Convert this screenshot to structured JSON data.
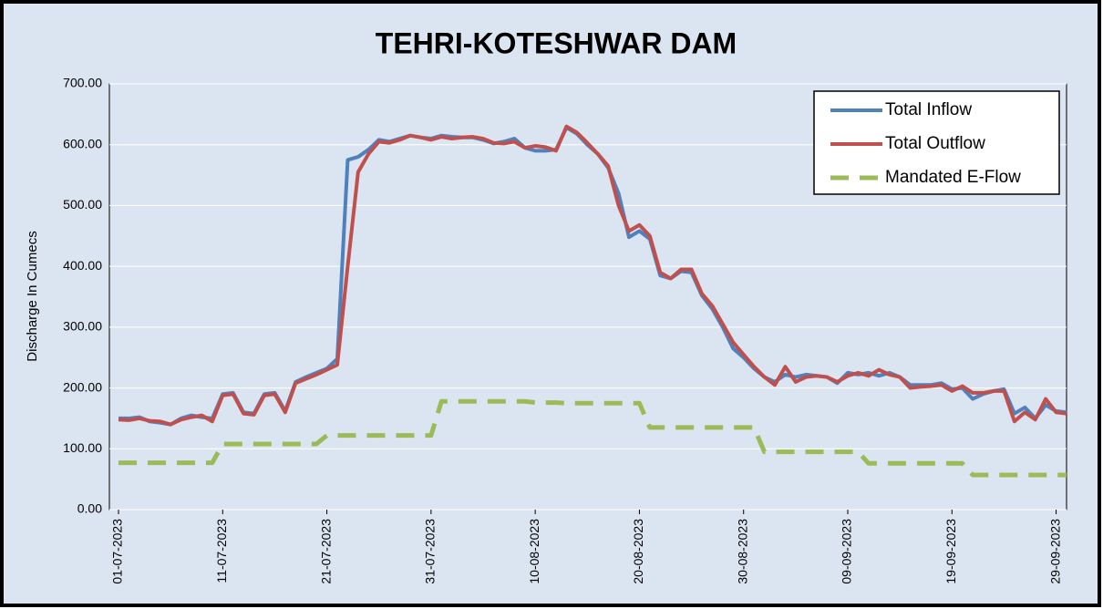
{
  "chart_data": {
    "type": "line",
    "title": "TEHRI-KOTESHWAR DAM",
    "y_label": "Discharge In Cumecs",
    "categories": [
      "01-07-2023",
      null,
      null,
      null,
      null,
      null,
      null,
      null,
      null,
      null,
      "11-07-2023",
      null,
      null,
      null,
      null,
      null,
      null,
      null,
      null,
      null,
      "21-07-2023",
      null,
      null,
      null,
      null,
      null,
      null,
      null,
      null,
      null,
      "31-07-2023",
      null,
      null,
      null,
      null,
      null,
      null,
      null,
      null,
      null,
      "10-08-2023",
      null,
      null,
      null,
      null,
      null,
      null,
      null,
      null,
      null,
      "20-08-2023",
      null,
      null,
      null,
      null,
      null,
      null,
      null,
      null,
      null,
      "30-08-2023",
      null,
      null,
      null,
      null,
      null,
      null,
      null,
      null,
      null,
      "09-09-2023",
      null,
      null,
      null,
      null,
      null,
      null,
      null,
      null,
      null,
      "19-09-2023",
      null,
      null,
      null,
      null,
      null,
      null,
      null,
      null,
      null,
      "29-09-2023",
      null
    ],
    "series": [
      {
        "name": "Total Inflow",
        "color": "#4f81bd",
        "dashed": false,
        "values": [
          150,
          150,
          152,
          145,
          143,
          140,
          150,
          155,
          152,
          150,
          190,
          192,
          160,
          158,
          190,
          192,
          162,
          210,
          218,
          225,
          232,
          248,
          575,
          580,
          592,
          608,
          605,
          610,
          615,
          612,
          610,
          615,
          613,
          612,
          612,
          608,
          602,
          605,
          610,
          595,
          590,
          590,
          592,
          628,
          618,
          600,
          585,
          562,
          520,
          448,
          458,
          445,
          385,
          380,
          392,
          390,
          352,
          330,
          300,
          265,
          250,
          232,
          218,
          210,
          222,
          218,
          222,
          220,
          218,
          208,
          225,
          222,
          225,
          220,
          225,
          218,
          205,
          205,
          205,
          208,
          198,
          200,
          182,
          190,
          195,
          198,
          158,
          168,
          150,
          172,
          162,
          160
        ]
      },
      {
        "name": "Total Outflow",
        "color": "#c0504d",
        "dashed": false,
        "values": [
          148,
          147,
          150,
          146,
          145,
          140,
          148,
          152,
          155,
          145,
          188,
          190,
          158,
          156,
          188,
          190,
          160,
          208,
          215,
          222,
          230,
          238,
          400,
          555,
          585,
          605,
          603,
          608,
          615,
          612,
          608,
          613,
          610,
          612,
          613,
          610,
          603,
          602,
          605,
          595,
          598,
          596,
          590,
          630,
          620,
          603,
          585,
          565,
          500,
          458,
          468,
          450,
          390,
          380,
          395,
          395,
          355,
          335,
          305,
          275,
          255,
          235,
          218,
          205,
          235,
          210,
          218,
          220,
          218,
          210,
          220,
          225,
          220,
          230,
          222,
          218,
          200,
          202,
          203,
          205,
          195,
          203,
          192,
          192,
          195,
          195,
          145,
          160,
          148,
          182,
          160,
          158
        ]
      },
      {
        "name": "Mandated E-Flow",
        "color": "#9bbb59",
        "dashed": true,
        "values": [
          77,
          77,
          77,
          77,
          77,
          77,
          77,
          77,
          77,
          77,
          108,
          108,
          108,
          108,
          108,
          108,
          108,
          108,
          108,
          108,
          122,
          122,
          122,
          122,
          122,
          122,
          122,
          122,
          122,
          122,
          122,
          178,
          178,
          178,
          178,
          178,
          178,
          178,
          178,
          178,
          176,
          176,
          176,
          175,
          175,
          175,
          175,
          175,
          175,
          175,
          175,
          135,
          135,
          135,
          135,
          135,
          135,
          135,
          135,
          135,
          135,
          135,
          95,
          95,
          95,
          95,
          95,
          95,
          95,
          95,
          95,
          95,
          76,
          76,
          76,
          76,
          76,
          76,
          76,
          76,
          76,
          76,
          57,
          57,
          57,
          57,
          57,
          57,
          57,
          57,
          57,
          57
        ]
      }
    ],
    "ylim": [
      0,
      700
    ],
    "yticks": [
      {
        "value": 0,
        "label": "0.00"
      },
      {
        "value": 100,
        "label": "100.00"
      },
      {
        "value": 200,
        "label": "200.00"
      },
      {
        "value": 300,
        "label": "300.00"
      },
      {
        "value": 400,
        "label": "400.00"
      },
      {
        "value": 500,
        "label": "500.00"
      },
      {
        "value": 600,
        "label": "600.00"
      },
      {
        "value": 700,
        "label": "700.00"
      }
    ],
    "grid": true,
    "legend": "upper right"
  }
}
